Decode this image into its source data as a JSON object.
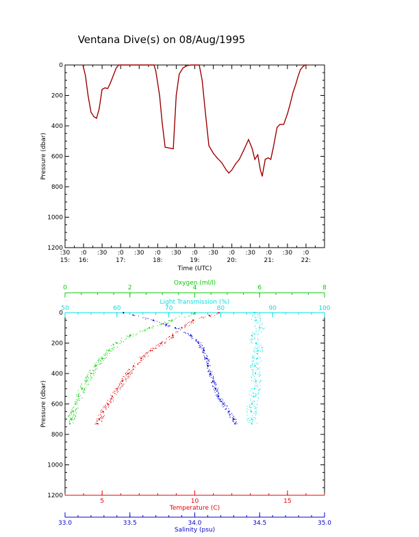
{
  "title": "Ventana Dive(s) on 08/Aug/1995",
  "colors": {
    "axes": "#000000",
    "pressure_trace": "#cc0000",
    "pressure_trace_dark": "#400000",
    "oxygen": "#00cc00",
    "light_transmission": "#00e0e0",
    "temperature": "#e00000",
    "salinity": "#0000cc"
  },
  "chart_data": [
    {
      "type": "line",
      "title": "Ventana Dive(s) on 08/Aug/1995",
      "xlabel": "Time (UTC)",
      "ylabel": "Pressure (dbar)",
      "ylim": [
        1200,
        0
      ],
      "xlim": [
        "15:30",
        "22:30"
      ],
      "yticks": [
        "0",
        "200",
        "400",
        "600",
        "800",
        "1000",
        "1200"
      ],
      "xticks_top": [
        ":30",
        ":0",
        ":30",
        ":0",
        ":30",
        ":0",
        ":30",
        ":0",
        ":30",
        ":0",
        ":30",
        ":0",
        ":30",
        ":0"
      ],
      "xticks_bottom": [
        "15:",
        "16:",
        "17:",
        "18:",
        "19:",
        "20:",
        "21:",
        "22:"
      ],
      "series": [
        {
          "x_hours": [
            15.98,
            16.05,
            16.12,
            16.2,
            16.28,
            16.35,
            16.42,
            16.5,
            16.58,
            16.65,
            16.72,
            16.8,
            16.88,
            16.95,
            17.0,
            17.15,
            17.3,
            17.5,
            17.75,
            17.9,
            17.95,
            18.05,
            18.12,
            18.2,
            18.3,
            18.42,
            18.5,
            18.58,
            18.68,
            18.78,
            18.9,
            19.05,
            19.12,
            19.2,
            19.28,
            19.38,
            19.5,
            19.6,
            19.72,
            19.85,
            19.92,
            20.0,
            20.1,
            20.2,
            20.32,
            20.45,
            20.55,
            20.62,
            20.7,
            20.77,
            20.82,
            20.9,
            20.98,
            21.05,
            21.12,
            21.22,
            21.3,
            21.4,
            21.5,
            21.58,
            21.65,
            21.72,
            21.78,
            21.85,
            21.92,
            21.98,
            22.02
          ],
          "pressure": [
            0,
            70,
            200,
            310,
            340,
            350,
            290,
            160,
            150,
            155,
            120,
            70,
            20,
            0,
            0,
            0,
            0,
            0,
            0,
            0,
            40,
            200,
            380,
            540,
            545,
            550,
            200,
            60,
            20,
            5,
            0,
            0,
            0,
            100,
            300,
            530,
            580,
            610,
            640,
            690,
            710,
            690,
            650,
            620,
            560,
            490,
            550,
            620,
            590,
            690,
            730,
            620,
            610,
            620,
            540,
            410,
            390,
            390,
            320,
            250,
            180,
            130,
            80,
            30,
            10,
            0,
            0
          ]
        }
      ]
    },
    {
      "type": "scatter",
      "ylabel": "Pressure (dbar)",
      "ylim": [
        1200,
        0
      ],
      "yticks": [
        "0",
        "200",
        "400",
        "600",
        "800",
        "1000",
        "1200"
      ],
      "axes": {
        "oxygen": {
          "label": "Oxygen (ml/l)",
          "range": [
            0,
            8
          ],
          "ticks": [
            "0",
            "2",
            "4",
            "6",
            "8"
          ],
          "position": "top"
        },
        "light_transmission": {
          "label": "Light Transmission (%)",
          "range": [
            50,
            100
          ],
          "ticks": [
            "50",
            "60",
            "70",
            "80",
            "90",
            "100"
          ],
          "position": "top"
        },
        "temperature": {
          "label": "Temperature (C)",
          "range": [
            3.0,
            17.0
          ],
          "ticks": [
            "5",
            "10",
            "15"
          ],
          "position": "bottom"
        },
        "salinity": {
          "label": "Salinity (psu)",
          "range": [
            33.0,
            35.0
          ],
          "ticks": [
            "33.0",
            "33.5",
            "34.0",
            "34.5",
            "35.0"
          ],
          "position": "bottom"
        }
      },
      "series": [
        {
          "name": "Oxygen (ml/l)",
          "pressure": [
            0,
            50,
            100,
            150,
            200,
            250,
            300,
            350,
            400,
            450,
            500,
            550,
            600,
            650,
            700,
            730
          ],
          "values": [
            4.0,
            3.3,
            2.6,
            2.0,
            1.6,
            1.35,
            1.15,
            0.95,
            0.8,
            0.65,
            0.52,
            0.42,
            0.32,
            0.25,
            0.18,
            0.15
          ]
        },
        {
          "name": "Light Transmission (%)",
          "pressure": [
            0,
            50,
            100,
            150,
            200,
            250,
            300,
            350,
            400,
            450,
            500,
            550,
            600,
            650,
            700,
            730
          ],
          "values": [
            86.5,
            86.8,
            87.5,
            86.0,
            86.8,
            87.2,
            87.0,
            86.6,
            86.7,
            86.8,
            86.5,
            86.3,
            86.0,
            85.9,
            86.0,
            86.0
          ]
        },
        {
          "name": "Temperature (C)",
          "pressure": [
            0,
            20,
            50,
            100,
            150,
            200,
            250,
            300,
            350,
            400,
            450,
            500,
            550,
            600,
            650,
            700,
            730
          ],
          "values": [
            11.3,
            10.8,
            9.9,
            9.3,
            8.8,
            8.2,
            7.6,
            7.1,
            6.7,
            6.4,
            6.1,
            5.8,
            5.55,
            5.3,
            5.05,
            4.85,
            4.75
          ]
        },
        {
          "name": "Salinity (psu)",
          "pressure": [
            0,
            50,
            100,
            150,
            200,
            250,
            300,
            350,
            400,
            450,
            500,
            550,
            600,
            650,
            700,
            730
          ],
          "values": [
            33.45,
            33.68,
            33.85,
            33.97,
            34.03,
            34.07,
            34.09,
            34.1,
            34.12,
            34.14,
            34.16,
            34.18,
            34.22,
            34.26,
            34.3,
            34.31
          ]
        }
      ]
    }
  ]
}
